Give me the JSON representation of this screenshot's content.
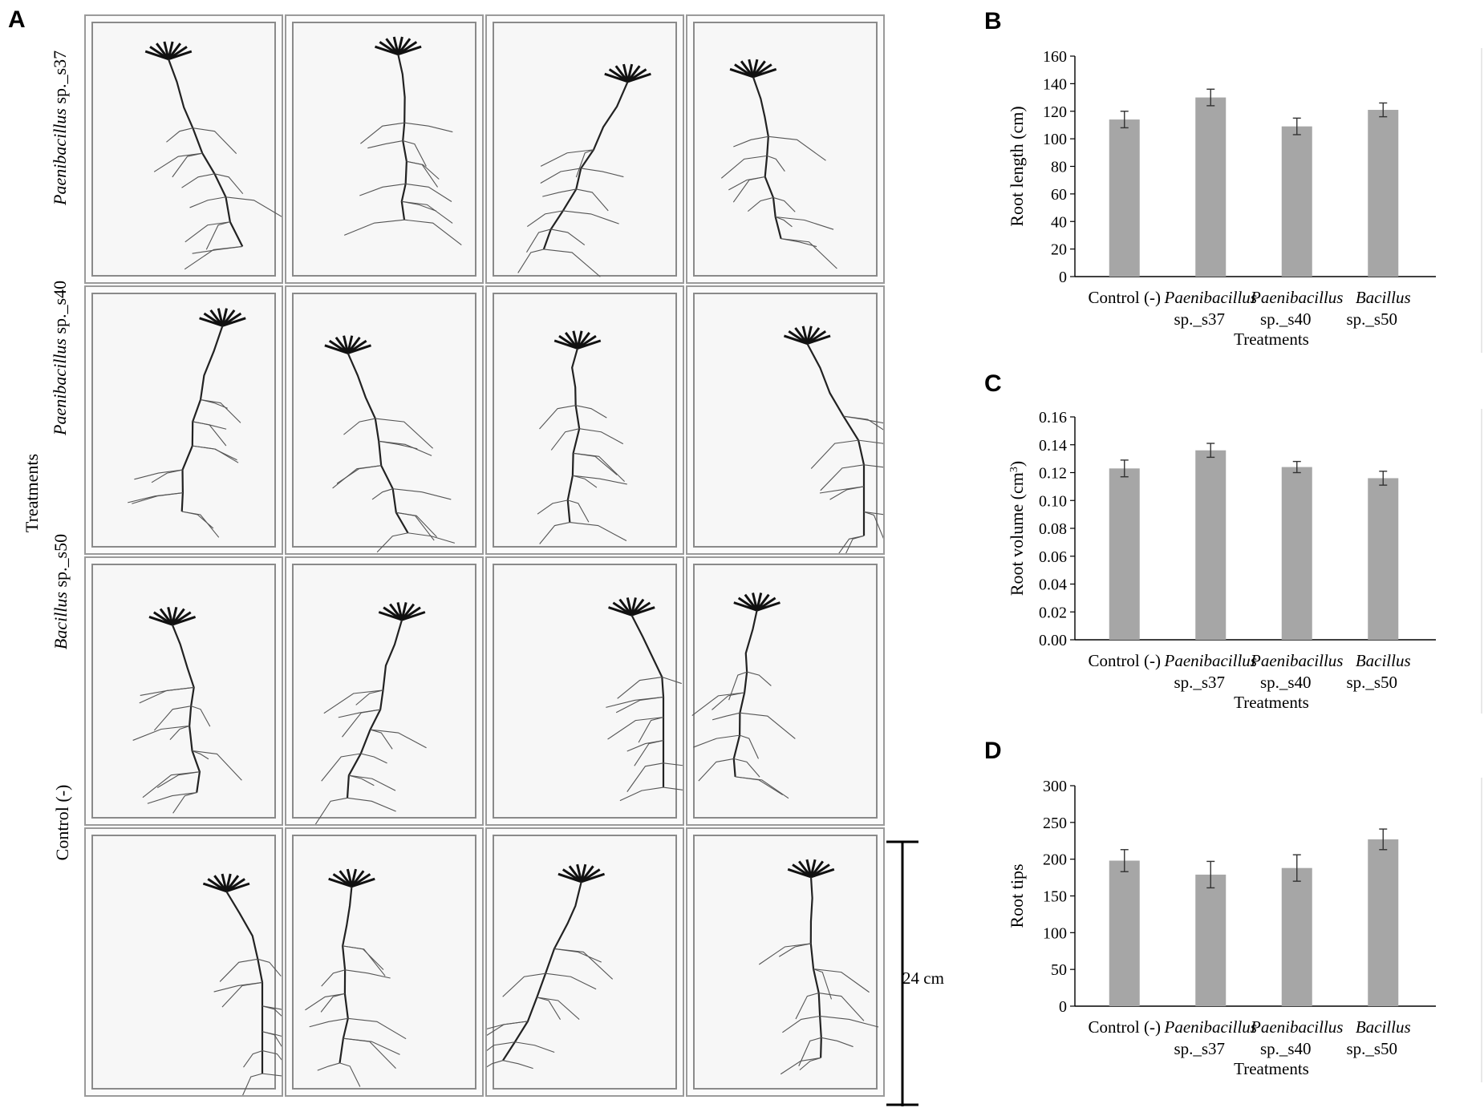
{
  "panel_a": {
    "letter": "A",
    "y_axis_label": "Treatments",
    "row_labels": [
      {
        "italic": "Paenibacillus",
        "rest": " sp._s37"
      },
      {
        "italic": "Paenibacillus",
        "rest": " sp._s40"
      },
      {
        "italic": "Bacillus",
        "rest": " sp._s50"
      },
      {
        "italic": "",
        "rest": "Control (-)"
      }
    ],
    "scale_bar_label": "24 cm",
    "grid": {
      "rows": 4,
      "cols": 4
    }
  },
  "chart_data": [
    {
      "letter": "B",
      "type": "bar",
      "categories": [
        {
          "line1": "Control (-)",
          "line2": "",
          "italic_line1": false
        },
        {
          "line1": "Paenibacillus",
          "line2": "sp._s37",
          "italic_line1": true
        },
        {
          "line1": "Paenibacillus",
          "line2": "sp._s40",
          "italic_line1": true
        },
        {
          "line1": "Bacillus",
          "line2": "sp._s50",
          "italic_line1": true
        }
      ],
      "values": [
        114,
        130,
        109,
        121
      ],
      "errors": [
        6,
        6,
        6,
        5
      ],
      "ylabel": "Root length (cm)",
      "ylabel_sup": "",
      "ylabel_after": "",
      "xlabel": "Treatments",
      "ylim": [
        0,
        160
      ],
      "yticks": [
        "0",
        "20",
        "40",
        "60",
        "80",
        "100",
        "120",
        "140",
        "160"
      ],
      "bar_color": "#a6a6a6"
    },
    {
      "letter": "C",
      "type": "bar",
      "categories": [
        {
          "line1": "Control (-)",
          "line2": "",
          "italic_line1": false
        },
        {
          "line1": "Paenibacillus",
          "line2": "sp._s37",
          "italic_line1": true
        },
        {
          "line1": "Paenibacillus",
          "line2": "sp._s40",
          "italic_line1": true
        },
        {
          "line1": "Bacillus",
          "line2": "sp._s50",
          "italic_line1": true
        }
      ],
      "values": [
        0.123,
        0.136,
        0.124,
        0.116
      ],
      "errors": [
        0.006,
        0.005,
        0.004,
        0.005
      ],
      "ylabel": "Root volume (cm",
      "ylabel_sup": "3",
      "ylabel_after": ")",
      "xlabel": "Treatments",
      "ylim": [
        0,
        0.16
      ],
      "yticks": [
        "0.00",
        "0.02",
        "0.04",
        "0.06",
        "0.08",
        "0.10",
        "0.12",
        "0.14",
        "0.16"
      ],
      "bar_color": "#a6a6a6"
    },
    {
      "letter": "D",
      "type": "bar",
      "categories": [
        {
          "line1": "Control (-)",
          "line2": "",
          "italic_line1": false
        },
        {
          "line1": "Paenibacillus",
          "line2": "sp._s37",
          "italic_line1": true
        },
        {
          "line1": "Paenibacillus",
          "line2": "sp._s40",
          "italic_line1": true
        },
        {
          "line1": "Bacillus",
          "line2": "sp._s50",
          "italic_line1": true
        }
      ],
      "values": [
        198,
        179,
        188,
        227
      ],
      "errors": [
        15,
        18,
        18,
        14
      ],
      "ylabel": "Root tips",
      "ylabel_sup": "",
      "ylabel_after": "",
      "xlabel": "Treatments",
      "ylim": [
        0,
        300
      ],
      "yticks": [
        "0",
        "50",
        "100",
        "150",
        "200",
        "250",
        "300"
      ],
      "bar_color": "#a6a6a6"
    }
  ]
}
